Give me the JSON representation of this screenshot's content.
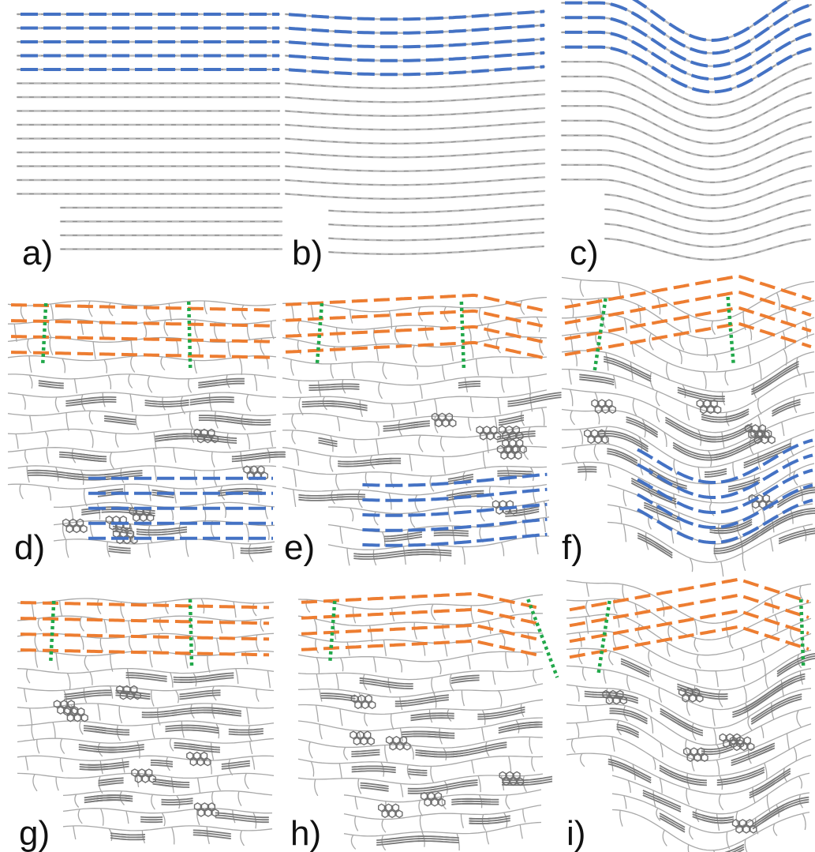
{
  "figure": {
    "panels": [
      {
        "id": "a",
        "label": "a)",
        "kind": "layered"
      },
      {
        "id": "b",
        "label": "b)",
        "kind": "layered"
      },
      {
        "id": "c",
        "label": "c)",
        "kind": "layered"
      },
      {
        "id": "d",
        "label": "d)",
        "kind": "porous"
      },
      {
        "id": "e",
        "label": "e)",
        "kind": "porous"
      },
      {
        "id": "f",
        "label": "f)",
        "kind": "porous"
      },
      {
        "id": "g",
        "label": "g)",
        "kind": "porous"
      },
      {
        "id": "h",
        "label": "h)",
        "kind": "porous"
      },
      {
        "id": "i",
        "label": "i)",
        "kind": "porous"
      }
    ],
    "colors": {
      "guide_blue": "#4472c4",
      "guide_orange": "#ed7d31",
      "guide_green": "#21a84a",
      "structure_light": "#b9b9b9",
      "structure_dark": "#6e6e6e"
    }
  }
}
